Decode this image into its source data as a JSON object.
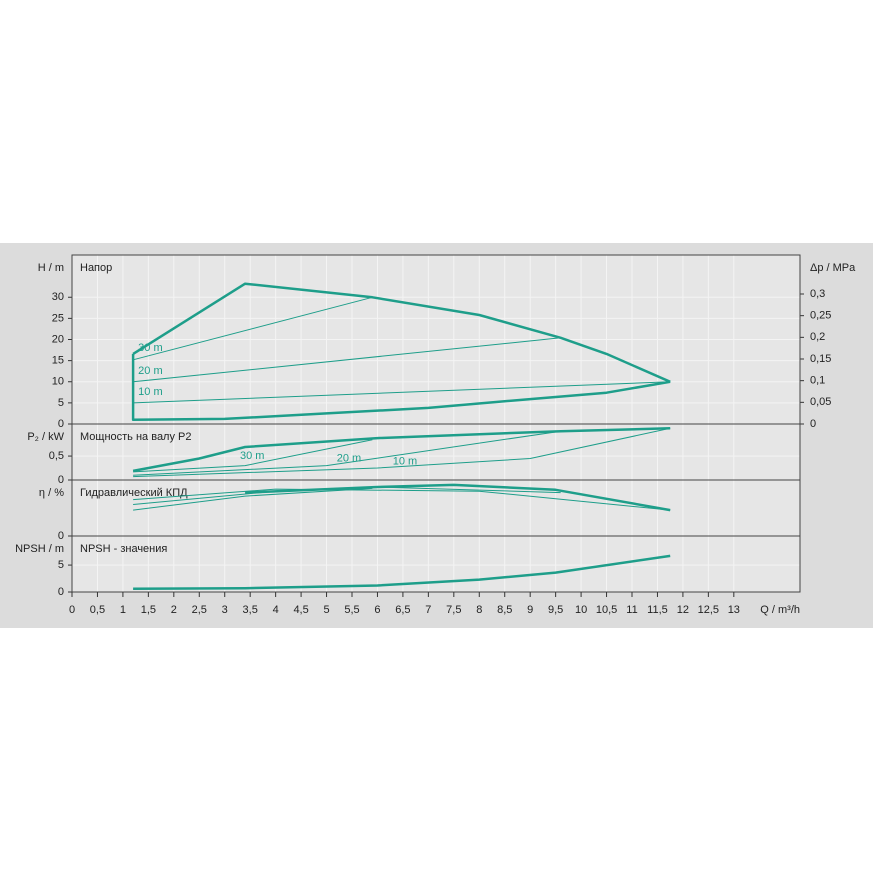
{
  "chart_data": [
    {
      "type": "line",
      "title": "Напор",
      "ylabel": "H / m",
      "y2label": "Δp / MPa",
      "xlim": [
        0,
        14.3
      ],
      "ylim": [
        0,
        40
      ],
      "yticks": [
        0,
        5,
        10,
        15,
        20,
        25,
        30
      ],
      "y2lim": [
        0,
        0.39
      ],
      "y2ticks": [
        0,
        {
          "value": 0.05,
          "label": "0,05"
        },
        {
          "value": 0.1,
          "label": "0,1"
        },
        {
          "value": 0.15,
          "label": "0,15"
        },
        {
          "value": 0.2,
          "label": "0,2"
        },
        {
          "value": 0.25,
          "label": "0,25"
        },
        {
          "value": 0.3,
          "label": "0,3"
        }
      ],
      "grid": true,
      "series": [
        {
          "color": "#1e9e8a",
          "line_width": 2.5,
          "x": [
            1.2,
            3.4,
            5.9,
            8,
            9.6,
            10.5,
            11.75
          ],
          "values": [
            16.6,
            33.2,
            30,
            25.8,
            20.4,
            16.6,
            10
          ]
        },
        {
          "color": "#1e9e8a",
          "line_width": 2.5,
          "x": [
            1.2,
            1.2,
            3,
            5,
            7,
            9,
            10.5,
            11.75
          ],
          "values": [
            16.6,
            1,
            1.2,
            2.5,
            3.8,
            5.9,
            7.4,
            10
          ]
        },
        {
          "color": "#1e9e8a",
          "line_width": 1,
          "x": [
            1.2,
            5.9
          ],
          "values": [
            15.2,
            30
          ]
        },
        {
          "color": "#1e9e8a",
          "line_width": 1,
          "x": [
            1.2,
            9.6
          ],
          "values": [
            10,
            20.4
          ]
        },
        {
          "color": "#1e9e8a",
          "line_width": 1,
          "x": [
            1.2,
            11.75
          ],
          "values": [
            5,
            10
          ]
        }
      ],
      "annotations": [
        {
          "text": "30 m",
          "x": 1.3,
          "y": 18
        },
        {
          "text": "20 m",
          "x": 1.3,
          "y": 12.5
        },
        {
          "text": "10 m",
          "x": 1.3,
          "y": 7.5
        }
      ]
    },
    {
      "type": "line",
      "title": "Мощность на валу P2",
      "ylabel": "P₂ / kW",
      "xlim": [
        0,
        14.3
      ],
      "ylim": [
        0,
        1.17
      ],
      "yticks": [
        0,
        {
          "value": 0.5,
          "label": "0,5"
        }
      ],
      "grid": true,
      "series": [
        {
          "color": "#1e9e8a",
          "line_width": 2.5,
          "x": [
            1.2,
            2.5,
            3.4,
            6,
            9.6,
            11.75
          ],
          "values": [
            0.19,
            0.45,
            0.69,
            0.875,
            1.02,
            1.08
          ]
        },
        {
          "color": "#1e9e8a",
          "line_width": 1,
          "x": [
            1.2,
            3.4,
            5.9
          ],
          "values": [
            0.17,
            0.3,
            0.84
          ]
        },
        {
          "color": "#1e9e8a",
          "line_width": 1,
          "x": [
            1.2,
            5,
            9.6
          ],
          "values": [
            0.1,
            0.3,
            1.02
          ]
        },
        {
          "color": "#1e9e8a",
          "line_width": 1,
          "x": [
            1.2,
            6,
            9,
            11.75
          ],
          "values": [
            0.07,
            0.25,
            0.45,
            1.08
          ]
        }
      ],
      "annotations": [
        {
          "text": "30 m",
          "x": 3.3,
          "y": 0.5
        },
        {
          "text": "20 m",
          "x": 5.2,
          "y": 0.45
        },
        {
          "text": "10 m",
          "x": 6.3,
          "y": 0.38
        }
      ]
    },
    {
      "type": "line",
      "title": "Гидравлический КПД",
      "ylabel": "η / %",
      "xlim": [
        0,
        14.3
      ],
      "ylim": [
        0,
        80
      ],
      "yticks": [
        0
      ],
      "grid": true,
      "series": [
        {
          "color": "#1e9e8a",
          "line_width": 2.5,
          "x": [
            3.4,
            6,
            7.5,
            9.5,
            11.75
          ],
          "values": [
            62,
            70,
            73,
            66,
            37
          ]
        },
        {
          "color": "#1e9e8a",
          "line_width": 1,
          "x": [
            1.2,
            3.4,
            5.9
          ],
          "values": [
            37,
            57,
            68
          ]
        },
        {
          "color": "#1e9e8a",
          "line_width": 1,
          "x": [
            1.2,
            4,
            6,
            9.6
          ],
          "values": [
            45,
            64,
            70,
            62
          ]
        },
        {
          "color": "#1e9e8a",
          "line_width": 1,
          "x": [
            1.2,
            4,
            8,
            11.75
          ],
          "values": [
            52,
            67,
            64,
            37
          ]
        }
      ]
    },
    {
      "type": "line",
      "title": "NPSH - значения",
      "ylabel": "NPSH / m",
      "xlabel": "Q / m³/h",
      "xlim": [
        0,
        14.3
      ],
      "ylim": [
        0,
        10.4
      ],
      "yticks": [
        0,
        5
      ],
      "grid": true,
      "xticks": [
        0,
        {
          "value": 0.5,
          "label": "0,5"
        },
        1,
        {
          "value": 1.5,
          "label": "1,5"
        },
        2,
        {
          "value": 2.5,
          "label": "2,5"
        },
        3,
        {
          "value": 3.5,
          "label": "3,5"
        },
        4,
        {
          "value": 4.5,
          "label": "4,5"
        },
        5,
        {
          "value": 5.5,
          "label": "5,5"
        },
        6,
        {
          "value": 6.5,
          "label": "6,5"
        },
        7,
        {
          "value": 7.5,
          "label": "7,5"
        },
        8,
        {
          "value": 8.5,
          "label": "8,5"
        },
        9,
        {
          "value": 9.5,
          "label": "9,5"
        },
        10,
        {
          "value": 10.5,
          "label": "10,5"
        },
        11,
        {
          "value": 11.5,
          "label": "11,5"
        },
        12,
        {
          "value": 12.5,
          "label": "12,5"
        },
        13
      ],
      "series": [
        {
          "color": "#1e9e8a",
          "line_width": 2.5,
          "x": [
            1.2,
            3.4,
            6,
            8,
            9.5,
            11.75
          ],
          "values": [
            0.6,
            0.7,
            1.2,
            2.3,
            3.6,
            6.7
          ]
        }
      ]
    }
  ]
}
